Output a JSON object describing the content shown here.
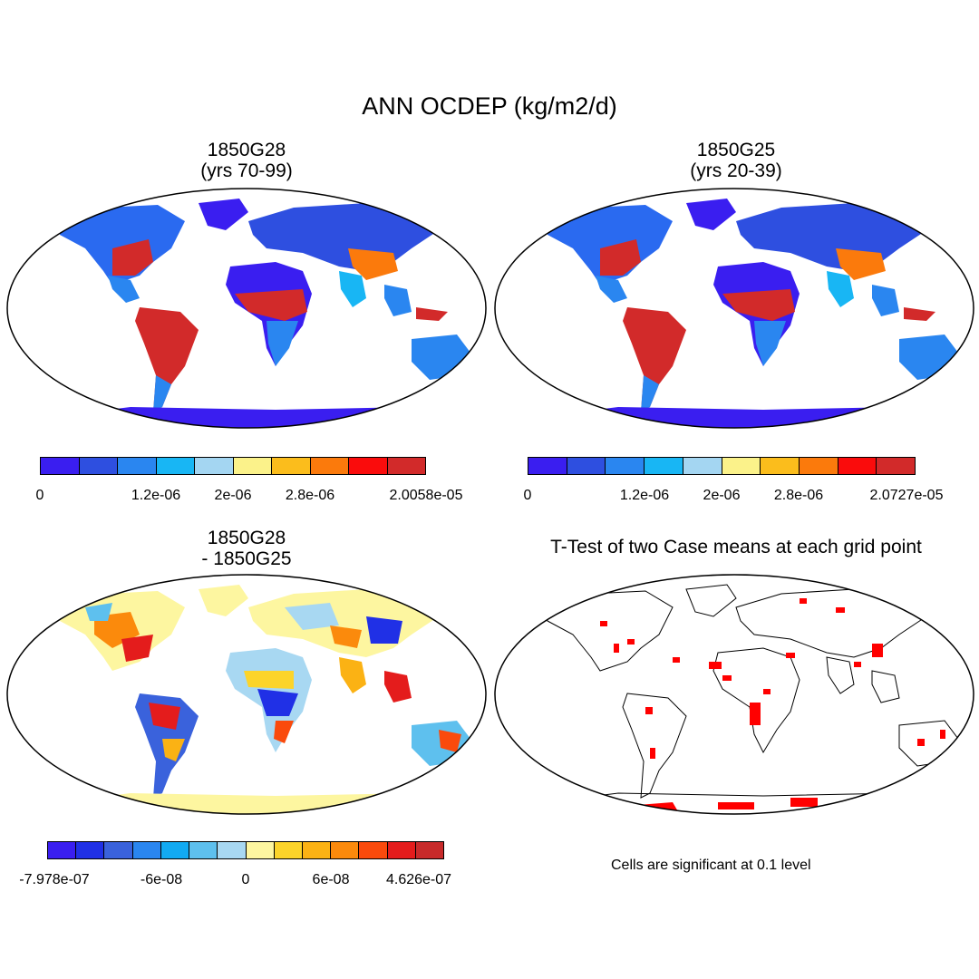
{
  "title": "ANN OCDEP (kg/m2/d)",
  "panels": [
    {
      "title1": "1850G28",
      "title2": "(yrs 70-99)",
      "colorbar": {
        "colors": [
          "#3a1ef0",
          "#2e4fe0",
          "#2a86f0",
          "#18b6f4",
          "#a4d6f2",
          "#fbf28a",
          "#fbbd1c",
          "#fb7a0c",
          "#fa0c0c",
          "#d22a2a"
        ],
        "labels": [
          "0",
          "1.2e-06",
          "2e-06",
          "2.8e-06",
          "2.0058e-05"
        ]
      }
    },
    {
      "title1": "1850G25",
      "title2": "(yrs 20-39)",
      "colorbar": {
        "colors": [
          "#3a1ef0",
          "#2e4fe0",
          "#2a86f0",
          "#18b6f4",
          "#a4d6f2",
          "#fbf28a",
          "#fbbd1c",
          "#fb7a0c",
          "#fa0c0c",
          "#d22a2a"
        ],
        "labels": [
          "0",
          "1.2e-06",
          "2e-06",
          "2.8e-06",
          "2.0727e-05"
        ]
      }
    },
    {
      "title1": "1850G28",
      "title2": "- 1850G25",
      "colorbar": {
        "colors": [
          "#3a1ef0",
          "#2030e6",
          "#3a62dc",
          "#2a86f0",
          "#12aaf2",
          "#5ec0ee",
          "#a8d8f2",
          "#fdf6a0",
          "#fcd42a",
          "#fbb214",
          "#fb8a0c",
          "#fa4a0c",
          "#e41c1c",
          "#c82a2a"
        ],
        "labels": [
          "-7.978e-07",
          "-6e-08",
          "0",
          "6e-08",
          "4.626e-07"
        ]
      }
    },
    {
      "title1": "T-Test of two Case means at each grid point",
      "note": "Cells are significant at 0.1 level"
    }
  ]
}
